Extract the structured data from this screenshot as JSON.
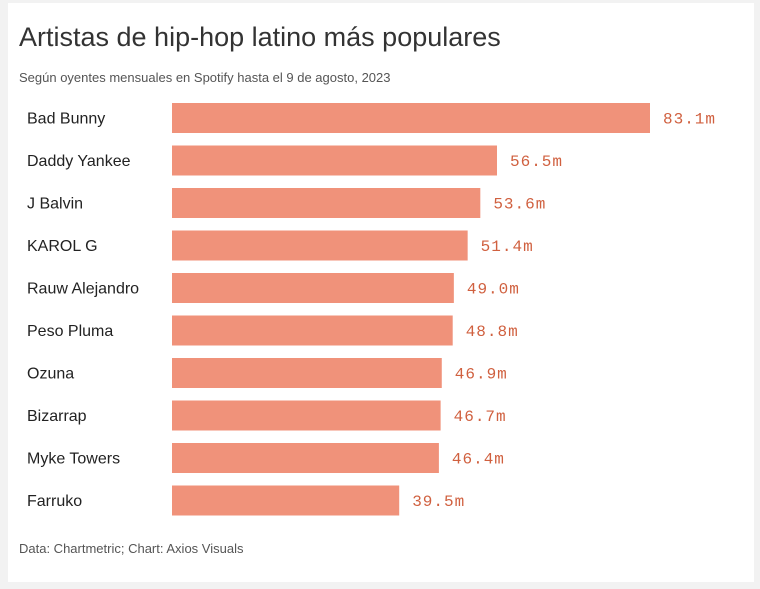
{
  "chart_data": {
    "type": "bar",
    "orientation": "horizontal",
    "title": "Artistas de hip-hop latino más populares",
    "subtitle": "Según oyentes mensuales en Spotify hasta el 9 de agosto, 2023",
    "source": "Data: Chartmetric; Chart: Axios Visuals",
    "categories": [
      "Bad Bunny",
      "Daddy Yankee",
      "J Balvin",
      "KAROL G",
      "Rauw Alejandro",
      "Peso Pluma",
      "Ozuna",
      "Bizarrap",
      "Myke Towers",
      "Farruko"
    ],
    "values": [
      83.1,
      56.5,
      53.6,
      51.4,
      49.0,
      48.8,
      46.9,
      46.7,
      46.4,
      39.5
    ],
    "value_labels": [
      "83.1m",
      "56.5m",
      "53.6m",
      "51.4m",
      "49.0m",
      "48.8m",
      "46.9m",
      "46.7m",
      "46.4m",
      "39.5m"
    ],
    "unit": "millones de oyentes",
    "xlim": [
      0,
      83.1
    ],
    "grid": false,
    "colors": {
      "bar": "#f0927a",
      "label": "#d0603f"
    }
  }
}
